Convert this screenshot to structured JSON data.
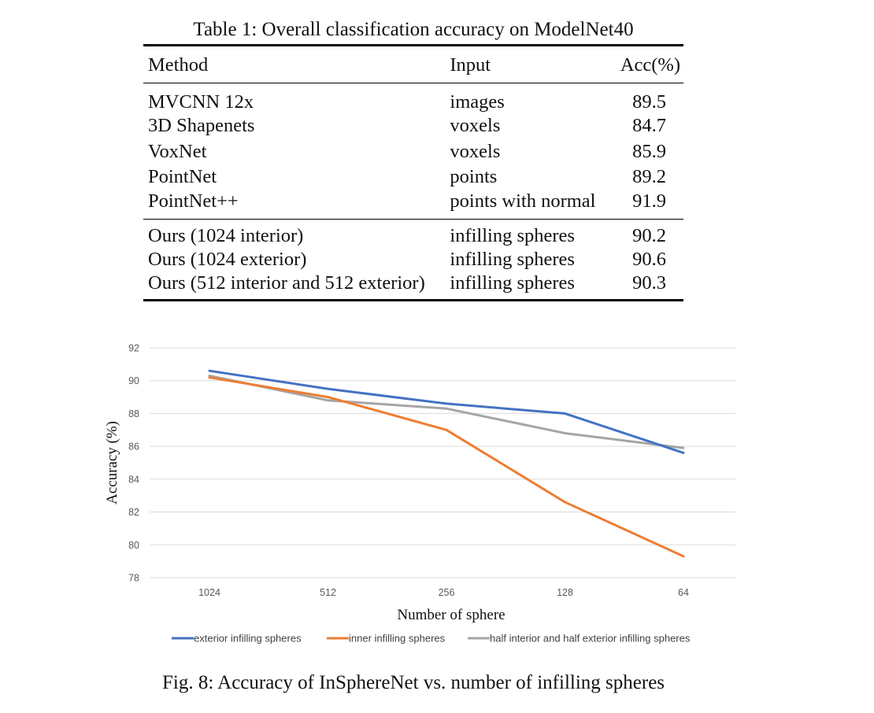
{
  "table": {
    "caption": "Table 1: Overall classification accuracy on ModelNet40",
    "headers": [
      "Method",
      "Input",
      "Acc(%)"
    ],
    "rows": [
      [
        "MVCNN 12x",
        "images",
        "89.5"
      ],
      [
        "3D Shapenets",
        "voxels",
        "84.7"
      ],
      [
        "VoxNet",
        "voxels",
        "85.9"
      ],
      [
        "PointNet",
        "points",
        "89.2"
      ],
      [
        "PointNet++",
        "points with normal",
        "91.9"
      ]
    ],
    "ours_rows": [
      [
        "Ours (1024 interior)",
        "infilling spheres",
        "90.2"
      ],
      [
        "Ours (1024 exterior)",
        "infilling spheres",
        "90.6"
      ],
      [
        "Ours (512 interior and 512 exterior)",
        "infilling spheres",
        "90.3"
      ]
    ]
  },
  "figure": {
    "caption": "Fig. 8: Accuracy of InSphereNet vs. number of infilling spheres"
  },
  "chart_data": {
    "type": "line",
    "title": "",
    "xlabel": "Number of sphere",
    "ylabel": "Accuracy (%)",
    "categories": [
      "1024",
      "512",
      "256",
      "128",
      "64"
    ],
    "ylim": [
      78,
      92
    ],
    "yticks": [
      "78",
      "80",
      "82",
      "84",
      "86",
      "88",
      "90",
      "92"
    ],
    "grid": "horizontal",
    "legend_position": "bottom",
    "series": [
      {
        "name": "exterior infilling spheres",
        "color": "#4472c4",
        "values": [
          90.6,
          89.5,
          88.6,
          88.0,
          85.6
        ]
      },
      {
        "name": "inner infilling spheres",
        "color": "#ed7d31",
        "values": [
          90.2,
          89.0,
          87.0,
          82.6,
          79.3
        ]
      },
      {
        "name": "half interior and half exterior infilling spheres",
        "color": "#a5a5a5",
        "values": [
          90.3,
          88.8,
          88.3,
          86.8,
          85.9
        ]
      }
    ]
  }
}
